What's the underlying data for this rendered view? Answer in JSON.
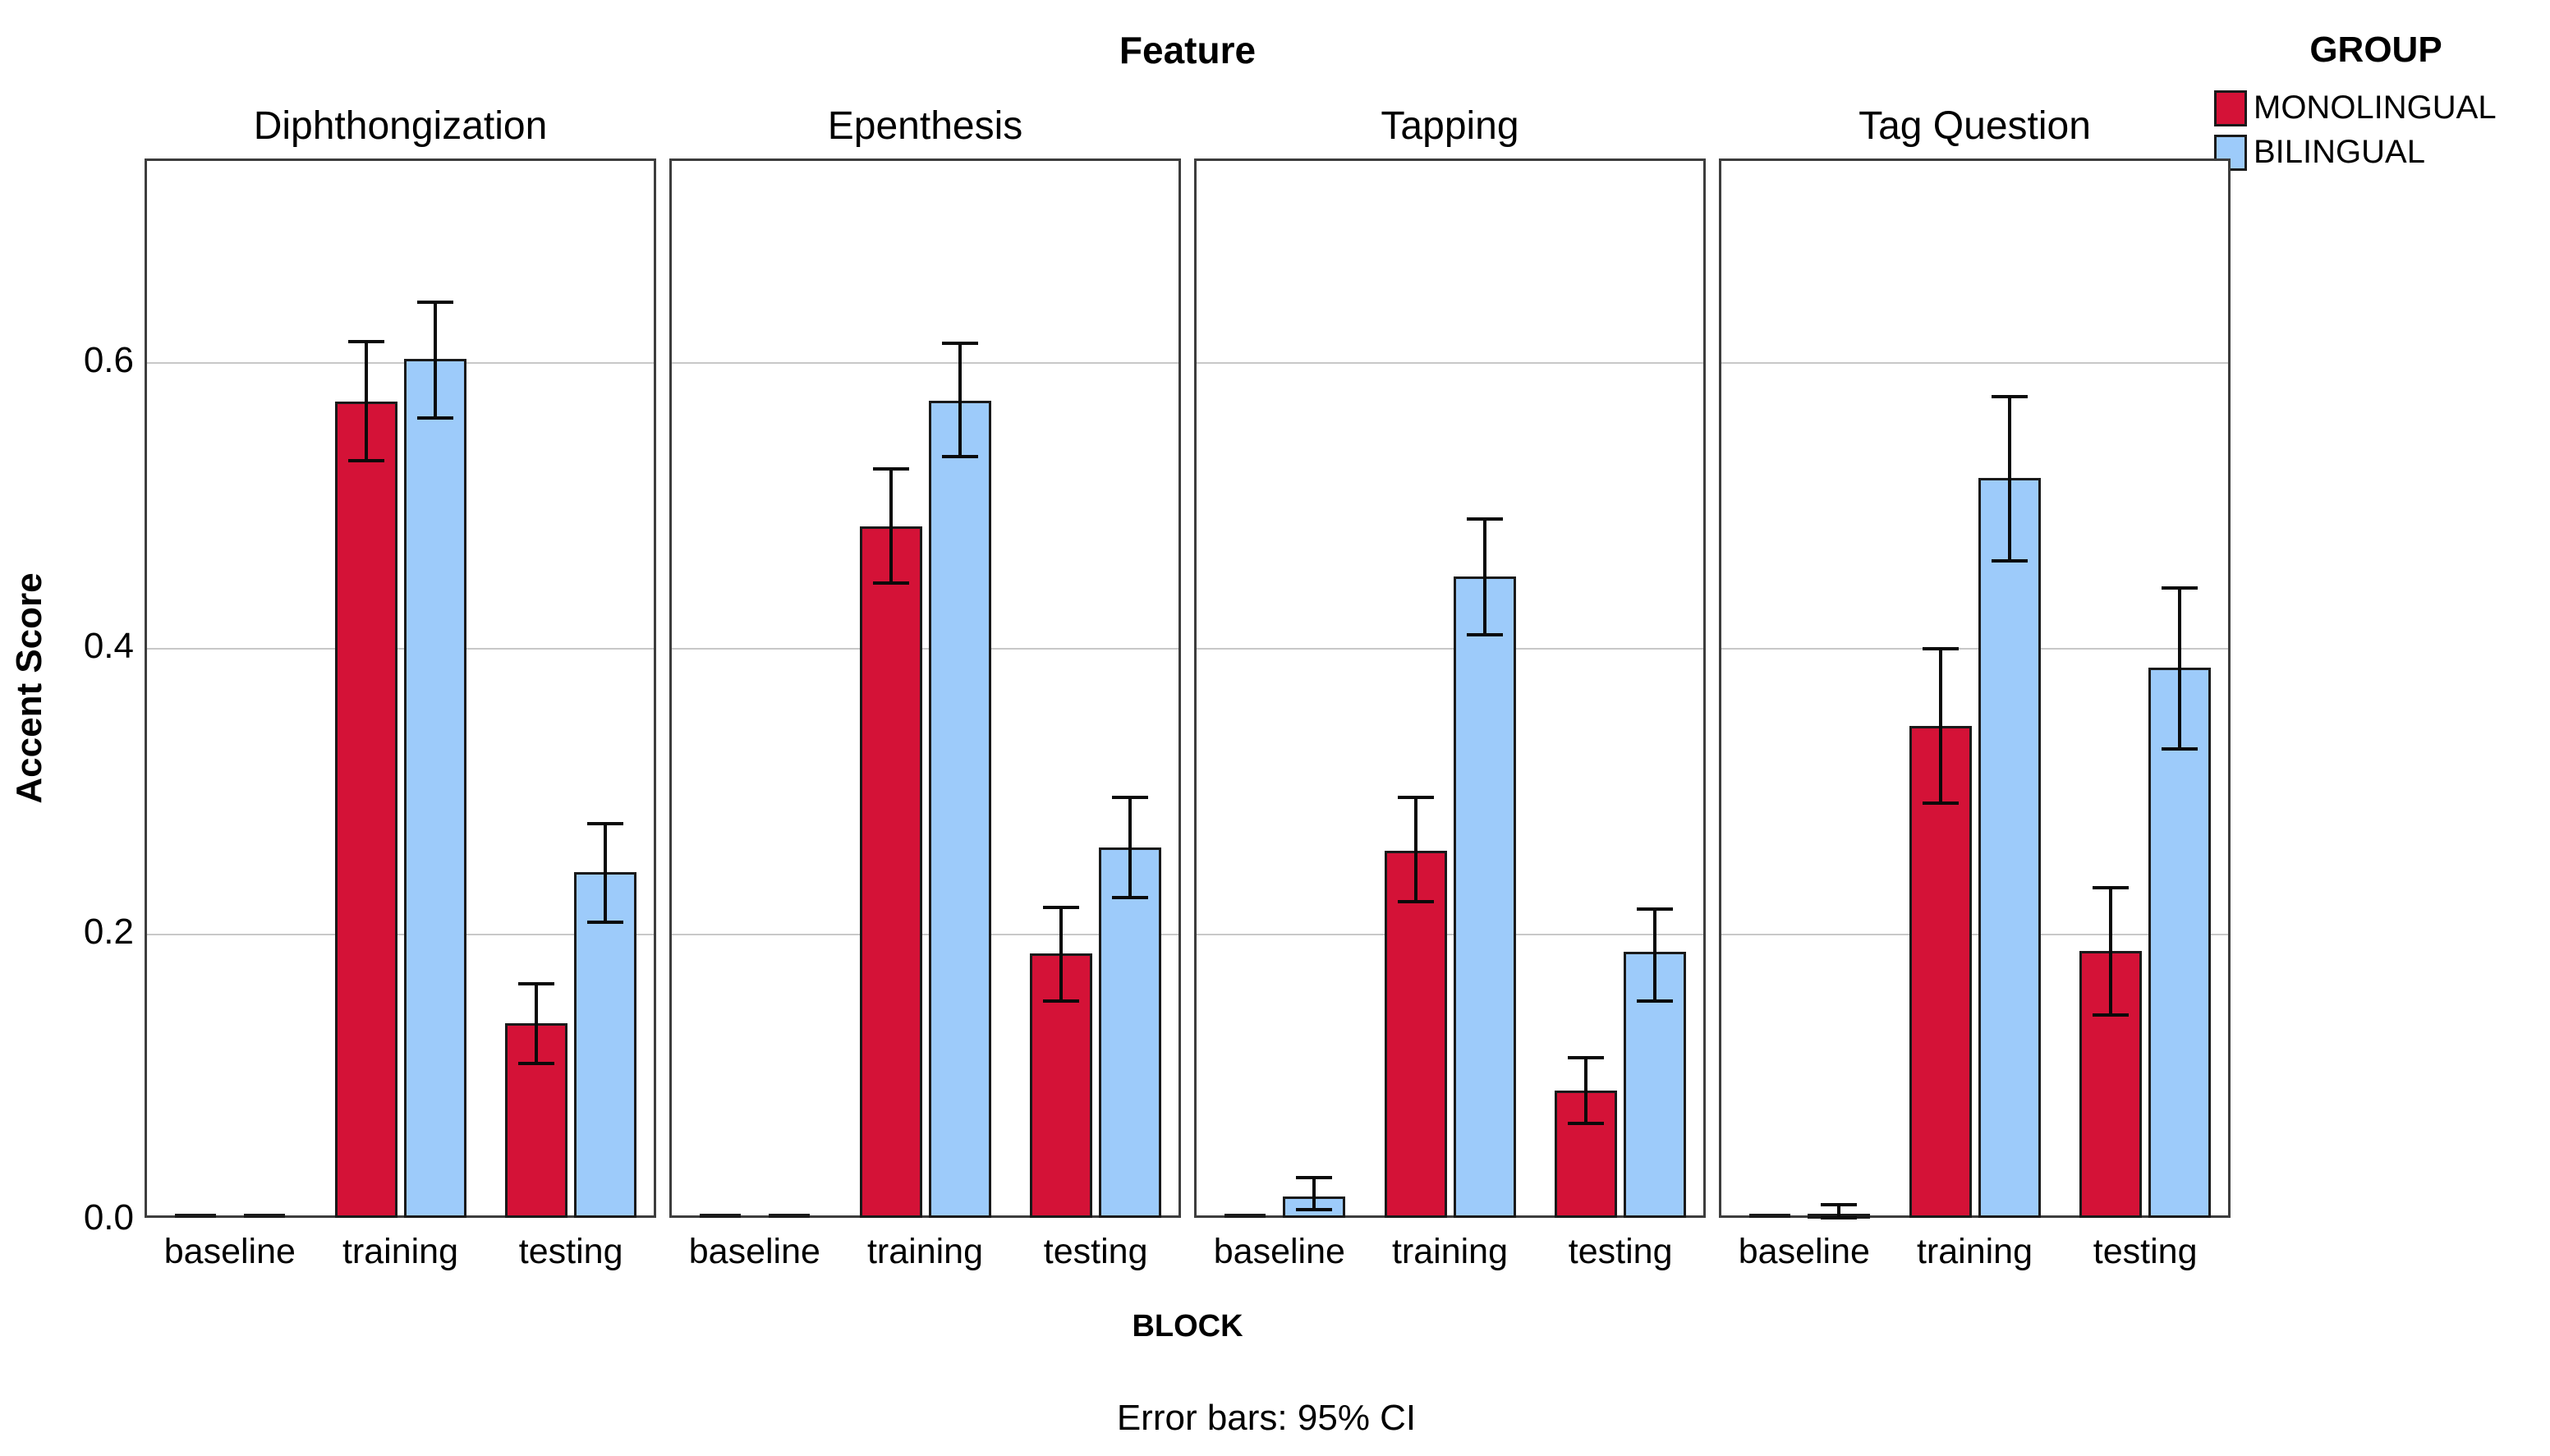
{
  "chart_data": {
    "type": "bar",
    "title": "Feature",
    "xlabel": "BLOCK",
    "ylabel": "Accent Score",
    "footnote": "Error bars: 95% CI",
    "ylim": [
      0,
      0.74
    ],
    "yticks": [
      0.0,
      0.2,
      0.4,
      0.6
    ],
    "ytick_labels": [
      "0.0",
      "0.2",
      "0.4",
      "0.6"
    ],
    "grid": true,
    "legend_position": "top-right",
    "categories": [
      "baseline",
      "training",
      "testing"
    ],
    "legend": {
      "title": "GROUP",
      "items": [
        {
          "label": "MONOLINGUAL",
          "color": "#D41237"
        },
        {
          "label": "BILINGUAL",
          "color": "#9DCBFA"
        }
      ]
    },
    "panels": [
      {
        "title": "Diphthongization",
        "series": [
          {
            "name": "MONOLINGUAL",
            "values": [
              0.001,
              0.571,
              0.136
            ],
            "ci_low": [
              null,
              0.53,
              0.108
            ],
            "ci_high": [
              null,
              0.613,
              0.164
            ]
          },
          {
            "name": "BILINGUAL",
            "values": [
              0.001,
              0.601,
              0.242
            ],
            "ci_low": [
              null,
              0.56,
              0.207
            ],
            "ci_high": [
              null,
              0.641,
              0.276
            ]
          }
        ]
      },
      {
        "title": "Epenthesis",
        "series": [
          {
            "name": "MONOLINGUAL",
            "values": [
              0.001,
              0.484,
              0.185
            ],
            "ci_low": [
              null,
              0.444,
              0.152
            ],
            "ci_high": [
              null,
              0.524,
              0.217
            ]
          },
          {
            "name": "BILINGUAL",
            "values": [
              0.001,
              0.572,
              0.259
            ],
            "ci_low": [
              null,
              0.533,
              0.224
            ],
            "ci_high": [
              null,
              0.612,
              0.294
            ]
          }
        ]
      },
      {
        "title": "Tapping",
        "series": [
          {
            "name": "MONOLINGUAL",
            "values": [
              0.001,
              0.257,
              0.089
            ],
            "ci_low": [
              null,
              0.221,
              0.066
            ],
            "ci_high": [
              null,
              0.294,
              0.112
            ]
          },
          {
            "name": "BILINGUAL",
            "values": [
              0.015,
              0.449,
              0.186
            ],
            "ci_low": [
              0.006,
              0.408,
              0.152
            ],
            "ci_high": [
              0.028,
              0.489,
              0.216
            ]
          }
        ]
      },
      {
        "title": "Tag Question",
        "series": [
          {
            "name": "MONOLINGUAL",
            "values": [
              0.001,
              0.344,
              0.187
            ],
            "ci_low": [
              null,
              0.29,
              0.142
            ],
            "ci_high": [
              null,
              0.398,
              0.231
            ]
          },
          {
            "name": "BILINGUAL",
            "values": [
              0.003,
              0.518,
              0.385
            ],
            "ci_low": [
              0.0,
              0.46,
              0.328
            ],
            "ci_high": [
              0.009,
              0.575,
              0.441
            ]
          }
        ]
      }
    ],
    "colors": {
      "MONOLINGUAL": "#D41237",
      "BILINGUAL": "#9DCBFA"
    }
  }
}
